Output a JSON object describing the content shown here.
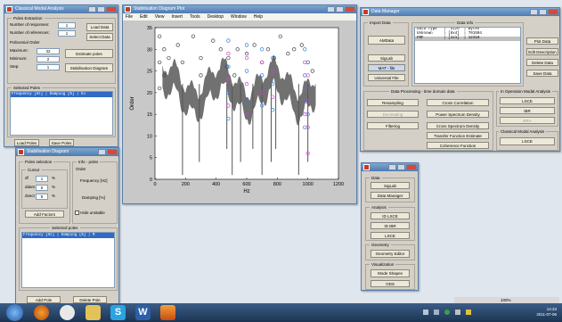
{
  "desktop": {
    "bg": "#dfe6ee"
  },
  "poles_window": {
    "title": "Classical Modal Analysis",
    "poles_extraction": "Poles Extraction",
    "num_responses_label": "Number of responses:",
    "num_responses_value": "1",
    "num_references_label": "Number of references:",
    "num_references_value": "1",
    "load_data": "Load Data",
    "select_data": "Select Data",
    "polynomial_order": "Polinomial Order",
    "maximum_label": "Maximum:",
    "maximum_value": "32",
    "minimum_label": "Minimum:",
    "minimum_value": "2",
    "step_label": "Step:",
    "step_value": "1",
    "estimate_poles": "Estimate poles",
    "stabilisation_diagram": "Stabilisation Diagram",
    "selected_poles": "Selected Poles",
    "selected_poles_header": "Frequency [Hz] | Damping [%] | Co",
    "load_poles": "Load Poles",
    "save_poles": "Save Poles"
  },
  "stab_window": {
    "title": "Stabilisation Diagram",
    "pole_selection": "Poles selection",
    "info_poles": "Info - poles",
    "cursor": "Cursor",
    "df_label": "df",
    "df_value": "1",
    "dfi_label": "ddam",
    "dfi_value": "5",
    "dvec_label": "dvect",
    "dvec_value": "5",
    "pct": "%",
    "order_label": "Order",
    "freq_label": "Frequency [Hz]",
    "damp_label": "Damping [%]",
    "add_factors": "Add Factors",
    "hide_unstable": "Hide unstable",
    "selected_poles": "Selected poles",
    "selected_poles_header": "Frequency [Hz] | Damping [%] | M",
    "add_pole": "Add Pole",
    "delete_pole": "Delete Pole"
  },
  "plot_window": {
    "title": "Stabilisation Diagram Plot",
    "menu": [
      "File",
      "Edit",
      "View",
      "Insert",
      "Tools",
      "Desktop",
      "Window",
      "Help"
    ]
  },
  "chart_data": {
    "type": "scatter",
    "title": "",
    "xlabel": "Hz",
    "ylabel": "Order",
    "xlim": [
      0,
      1200
    ],
    "ylim": [
      0,
      35
    ],
    "xticks": [
      0,
      200,
      400,
      600,
      800,
      1000,
      1200
    ],
    "yticks": [
      0,
      5,
      10,
      15,
      20,
      25,
      30,
      35
    ],
    "series": [
      {
        "marker": "o",
        "color": "#444444",
        "x": [
          30,
          30,
          30,
          60,
          60,
          90,
          150,
          180,
          250,
          300,
          300,
          380,
          430,
          470,
          480,
          520,
          540,
          600,
          650,
          700,
          740,
          780,
          820,
          870,
          910,
          960,
          1000,
          1030
        ],
        "y": [
          33,
          27,
          21,
          30,
          24,
          28,
          31,
          27,
          33,
          28,
          24,
          32,
          30,
          26,
          28,
          24,
          30,
          29,
          31,
          27,
          30,
          28,
          33,
          29,
          30,
          31,
          27,
          25
        ]
      },
      {
        "marker": "o",
        "color": "#2d7fe0",
        "x": [
          480,
          480,
          480,
          480,
          600,
          600,
          600,
          700,
          700,
          700,
          770,
          770,
          770,
          980,
          980,
          980,
          980,
          1000,
          1000,
          1000
        ],
        "y": [
          32,
          26,
          20,
          14,
          31,
          25,
          18,
          30,
          24,
          17,
          28,
          22,
          16,
          30,
          24,
          18,
          12,
          27,
          21,
          15
        ]
      },
      {
        "marker": "o",
        "color": "#d040d0",
        "x": [
          480,
          480,
          480,
          600,
          600,
          600,
          700,
          700,
          770,
          770,
          980,
          980,
          980,
          1000,
          1000,
          1000,
          1000
        ],
        "y": [
          29,
          23,
          17,
          28,
          22,
          15,
          27,
          20,
          25,
          19,
          27,
          21,
          15,
          24,
          18,
          12,
          6
        ]
      }
    ],
    "spectrum_color": "#595959"
  },
  "data_manager": {
    "title": "Data Manager",
    "import_data": "Import Data",
    "data_info": "Data Info",
    "ami_data": "AMData",
    "siglab": "SigLab",
    "mat_file": "MAT - file",
    "universal_file": "Universal File",
    "list_lines": [
      "Data Type   |  Size  | Bytes",
      "Unknown     | [8x4]  | 701504",
      "FRF         | [1x1]  | 12410"
    ],
    "plot_data": "Plot Data",
    "edit_description": "Edit Description",
    "delete_data": "Delete Data",
    "save_data": "Save Data",
    "processing": "Data Processing - time domain data",
    "resampling": "Resampling",
    "decimating": "Decimating",
    "filtering": "Filtering",
    "cross_correlation": "Cross Correlation",
    "power_spectrum": "Power Spectrum Density",
    "cross_spectrum": "Cross Spectrum Density",
    "transfer_function": "Transfer Function Estimate",
    "coherence": "Coherence Function",
    "operation_modal": "In Operation Modal Analysis",
    "lsce": "LSCE",
    "ibr": "IBR",
    "erm": "ERA",
    "classical_modal": "Classical Modal Analysis",
    "lsce2": "LSCE"
  },
  "toolbox": {
    "data": "Data",
    "siglab": "SigLab",
    "data_manager": "Data Manager",
    "analysis": "Analysis",
    "id_lsce": "ID LSCE",
    "id_ibr": "ID IBR",
    "lsce": "LSCE",
    "geometry": "Geometry",
    "geometry_editor": "Geometry Editor",
    "visualization": "Visualization",
    "mode_shapes": "Mode Shapes",
    "ods": "ODS"
  },
  "taskbar": {
    "time": "14:33",
    "date": "2011-07-06",
    "zoom": "100%"
  }
}
